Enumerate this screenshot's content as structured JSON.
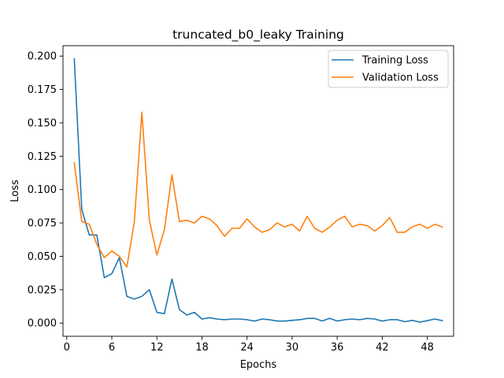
{
  "chart_data": {
    "type": "line",
    "title": "truncated_b0_leaky Training",
    "xlabel": "Epochs",
    "ylabel": "Loss",
    "xlim": [
      -0.5,
      51.5
    ],
    "ylim": [
      -0.0099,
      0.2078
    ],
    "xticks": [
      0,
      6,
      12,
      18,
      24,
      30,
      36,
      42,
      48
    ],
    "yticks": [
      0.0,
      0.025,
      0.05,
      0.075,
      0.1,
      0.125,
      0.15,
      0.175,
      0.2
    ],
    "ytick_labels": [
      "0.000",
      "0.025",
      "0.050",
      "0.075",
      "0.100",
      "0.125",
      "0.150",
      "0.175",
      "0.200"
    ],
    "grid": false,
    "legend_position": "top-right",
    "x": [
      1,
      2,
      3,
      4,
      5,
      6,
      7,
      8,
      9,
      10,
      11,
      12,
      13,
      14,
      15,
      16,
      17,
      18,
      19,
      20,
      21,
      22,
      23,
      24,
      25,
      26,
      27,
      28,
      29,
      30,
      31,
      32,
      33,
      34,
      35,
      36,
      37,
      38,
      39,
      40,
      41,
      42,
      43,
      44,
      45,
      46,
      47,
      48,
      49,
      50
    ],
    "series": [
      {
        "name": "Training Loss",
        "color": "#1f77b4",
        "values": [
          0.198,
          0.085,
          0.066,
          0.066,
          0.034,
          0.037,
          0.049,
          0.02,
          0.018,
          0.02,
          0.025,
          0.008,
          0.007,
          0.033,
          0.01,
          0.006,
          0.008,
          0.003,
          0.004,
          0.003,
          0.0025,
          0.003,
          0.003,
          0.0025,
          0.0015,
          0.003,
          0.0025,
          0.0015,
          0.0015,
          0.002,
          0.0025,
          0.0035,
          0.0035,
          0.0015,
          0.0035,
          0.0015,
          0.0025,
          0.003,
          0.0025,
          0.0035,
          0.003,
          0.0015,
          0.0025,
          0.0025,
          0.001,
          0.002,
          0.0007,
          0.0018,
          0.003,
          0.0018
        ]
      },
      {
        "name": "Validation Loss",
        "color": "#ff7f0e",
        "values": [
          0.12,
          0.076,
          0.074,
          0.059,
          0.049,
          0.054,
          0.05,
          0.042,
          0.076,
          0.158,
          0.077,
          0.051,
          0.07,
          0.111,
          0.076,
          0.077,
          0.075,
          0.08,
          0.078,
          0.073,
          0.065,
          0.071,
          0.071,
          0.078,
          0.072,
          0.068,
          0.07,
          0.075,
          0.072,
          0.074,
          0.069,
          0.08,
          0.071,
          0.068,
          0.072,
          0.077,
          0.08,
          0.072,
          0.074,
          0.073,
          0.069,
          0.073,
          0.079,
          0.068,
          0.068,
          0.072,
          0.074,
          0.071,
          0.074,
          0.072
        ]
      }
    ]
  }
}
